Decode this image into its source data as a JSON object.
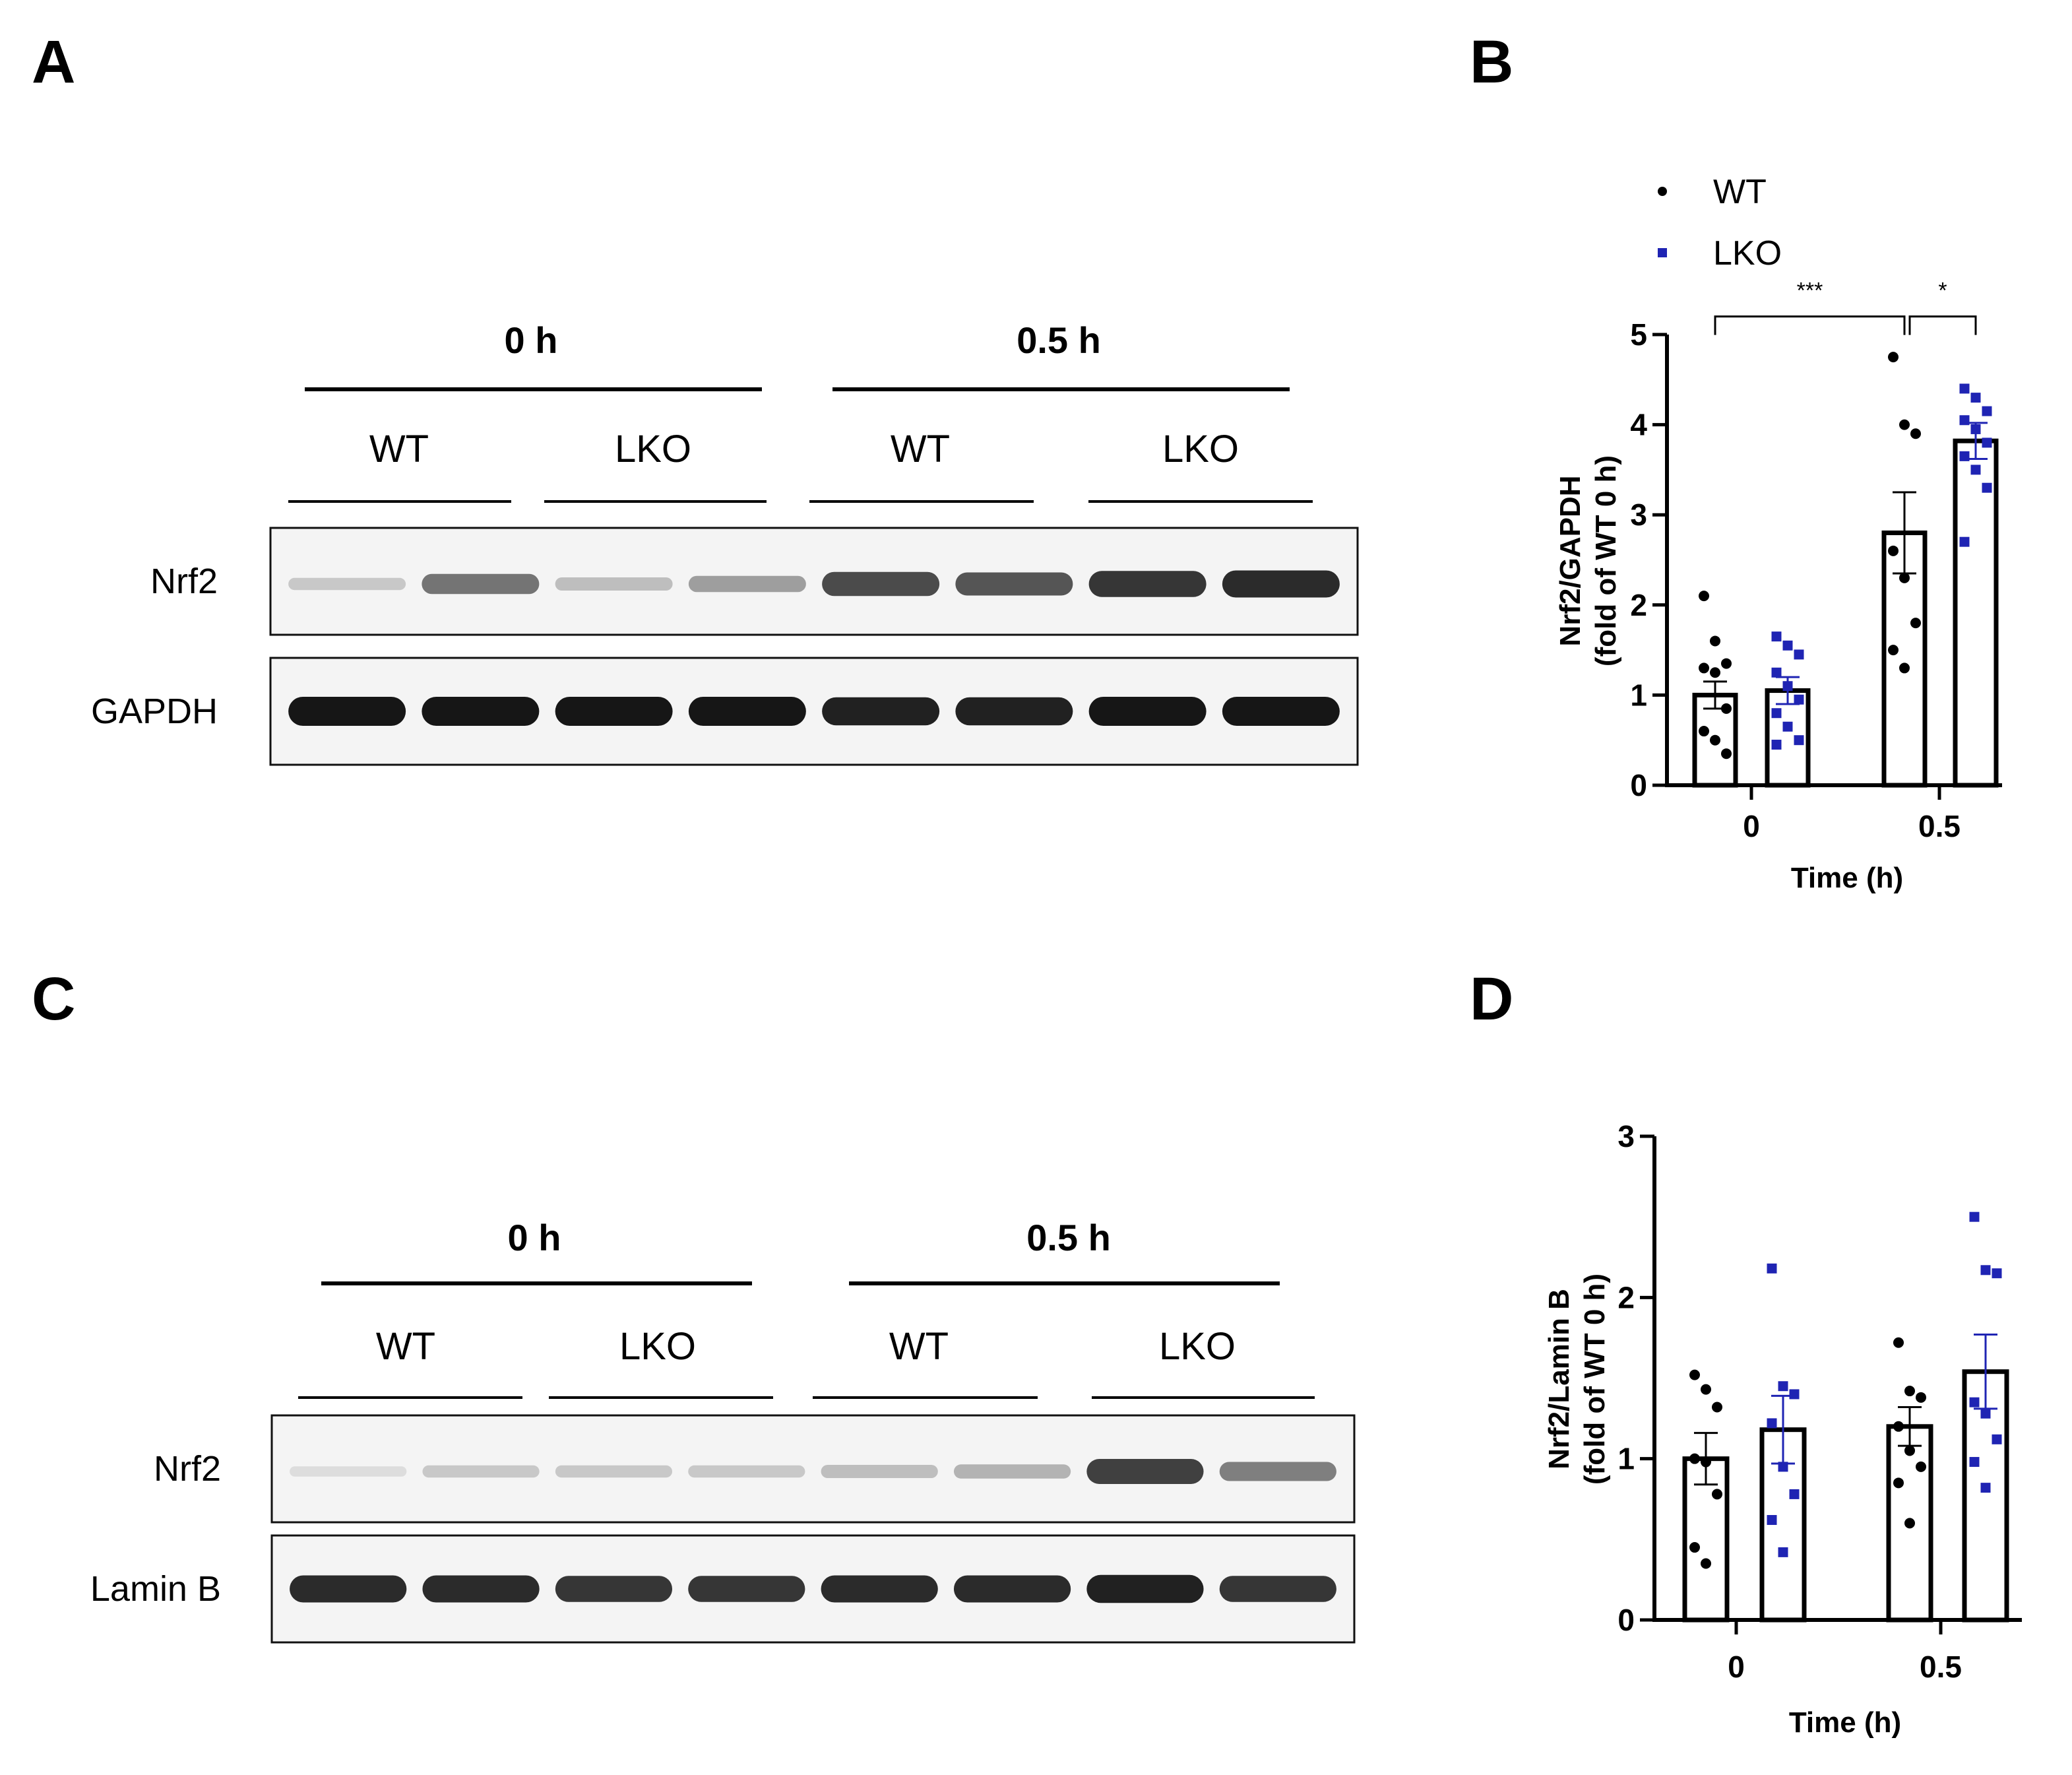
{
  "panels": {
    "a": "A",
    "b": "B",
    "c": "C",
    "d": "D"
  },
  "blots": [
    {
      "id": "A",
      "time_labels": [
        "0 h",
        "0.5 h"
      ],
      "group_labels": [
        "WT",
        "LKO",
        "WT",
        "LKO"
      ],
      "rows": [
        {
          "label": "Nrf2",
          "intensities": [
            0.15,
            0.55,
            0.2,
            0.35,
            0.75,
            0.7,
            0.85,
            0.9
          ]
        },
        {
          "label": "GAPDH",
          "intensities": [
            1,
            1,
            1,
            1,
            0.95,
            0.95,
            1,
            1
          ]
        }
      ]
    },
    {
      "id": "C",
      "time_labels": [
        "0 h",
        "0.5 h"
      ],
      "group_labels": [
        "WT",
        "LKO",
        "WT",
        "LKO"
      ],
      "rows": [
        {
          "label": "Nrf2",
          "intensities": [
            0.05,
            0.15,
            0.15,
            0.15,
            0.2,
            0.25,
            0.8,
            0.5
          ]
        },
        {
          "label": "Lamin B",
          "intensities": [
            0.9,
            0.9,
            0.85,
            0.85,
            0.9,
            0.9,
            0.95,
            0.85
          ]
        }
      ]
    }
  ],
  "colors": {
    "WT": "#000000",
    "LKO": "#1f24b3"
  },
  "chart_data": [
    {
      "id": "B",
      "type": "bar",
      "ylabel_lines": [
        "Nrf2/GAPDH",
        "(fold of WT 0 h)"
      ],
      "xlabel": "Time (h)",
      "categories": [
        "0",
        "0.5"
      ],
      "ylim": [
        0,
        5
      ],
      "yticks": [
        "0",
        "1",
        "2",
        "3",
        "4",
        "5"
      ],
      "legend": {
        "placement": "top-left",
        "entries": [
          "WT",
          "LKO"
        ]
      },
      "series": [
        {
          "name": "WT",
          "marker": "circle",
          "values": [
            1.0,
            2.8
          ],
          "sem": [
            0.15,
            0.45
          ],
          "points": [
            [
              2.1,
              1.6,
              1.35,
              1.3,
              1.25,
              0.85,
              0.6,
              0.5,
              0.35
            ],
            [
              4.75,
              4.0,
              3.9,
              2.6,
              2.3,
              1.8,
              1.5,
              1.3
            ]
          ]
        },
        {
          "name": "LKO",
          "marker": "square",
          "values": [
            1.05,
            3.82
          ],
          "sem": [
            0.15,
            0.2
          ],
          "points": [
            [
              1.65,
              1.55,
              1.45,
              1.25,
              1.1,
              0.95,
              0.8,
              0.65,
              0.5,
              0.45
            ],
            [
              4.4,
              4.3,
              4.15,
              4.05,
              3.95,
              3.8,
              3.65,
              3.5,
              3.3,
              2.7
            ]
          ]
        }
      ],
      "significance": [
        {
          "label": "***",
          "from_category": 0,
          "from_series": 0,
          "to_category": 1,
          "to_series": 0,
          "level": 5.2
        },
        {
          "label": "*",
          "from_category": 1,
          "from_series": 0,
          "to_category": 1,
          "to_series": 1,
          "level": 5.2
        }
      ]
    },
    {
      "id": "D",
      "type": "bar",
      "ylabel_lines": [
        "Nrf2/Lamin B",
        "(fold of WT 0 h)"
      ],
      "xlabel": "Time (h)",
      "categories": [
        "0",
        "0.5"
      ],
      "ylim": [
        0,
        3
      ],
      "yticks": [
        "0",
        "1",
        "2",
        "3"
      ],
      "series": [
        {
          "name": "WT",
          "marker": "circle",
          "values": [
            1.0,
            1.2
          ],
          "sem": [
            0.16,
            0.12
          ],
          "points": [
            [
              1.52,
              1.43,
              1.32,
              1.0,
              0.98,
              0.78,
              0.45,
              0.35
            ],
            [
              1.72,
              1.42,
              1.38,
              1.2,
              1.05,
              0.95,
              0.85,
              0.6
            ]
          ]
        },
        {
          "name": "LKO",
          "marker": "square",
          "values": [
            1.18,
            1.54
          ],
          "sem": [
            0.21,
            0.23
          ],
          "points": [
            [
              2.18,
              1.45,
              1.4,
              1.22,
              0.95,
              0.78,
              0.62,
              0.42
            ],
            [
              2.5,
              2.17,
              2.15,
              1.35,
              1.28,
              1.12,
              0.98,
              0.82
            ]
          ]
        }
      ]
    }
  ]
}
